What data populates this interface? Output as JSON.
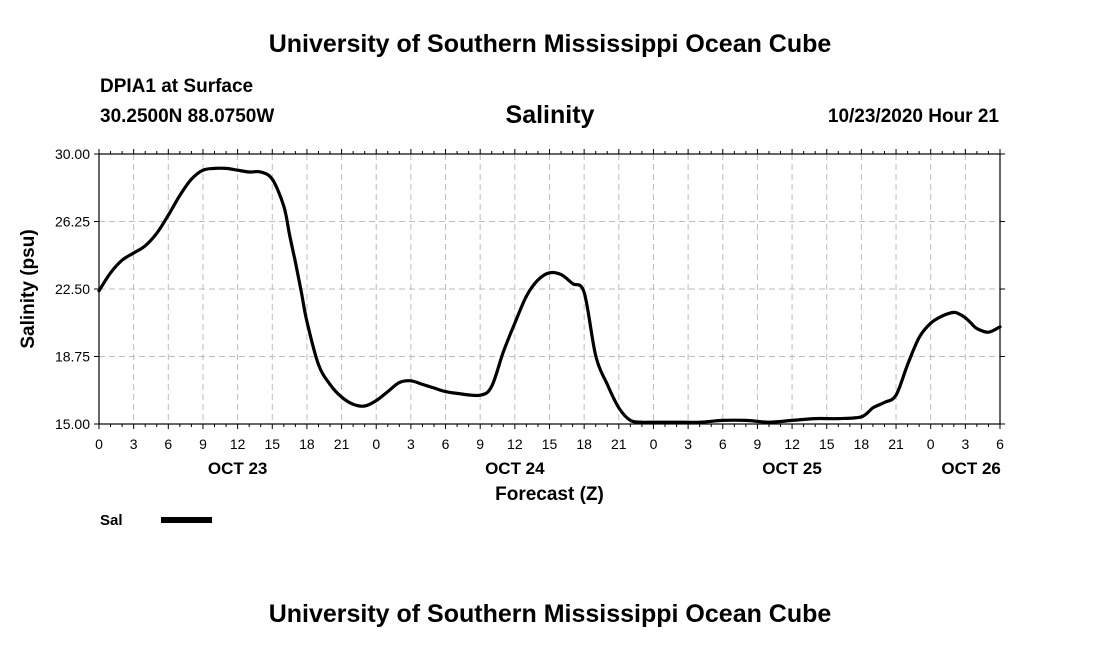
{
  "header": {
    "title_top": "University of Southern Mississippi Ocean Cube",
    "station": "DPIA1 at Surface",
    "coords": "30.2500N 88.0750W",
    "chart_title": "Salinity",
    "datetime": "10/23/2020 Hour 21",
    "title_bottom": "University of Southern Mississippi Ocean Cube"
  },
  "chart_data": {
    "type": "line",
    "title": "Salinity",
    "xlabel": "Forecast (Z)",
    "ylabel": "Salinity (psu)",
    "ylim": [
      15.0,
      30.0
    ],
    "y_ticks": [
      "15.00",
      "18.75",
      "22.50",
      "26.25",
      "30.00"
    ],
    "y_tick_values": [
      15.0,
      18.75,
      22.5,
      26.25,
      30.0
    ],
    "xlim": [
      0,
      78
    ],
    "x_tick_labels": [
      "0",
      "3",
      "6",
      "9",
      "12",
      "15",
      "18",
      "21",
      "0",
      "3",
      "6",
      "9",
      "12",
      "15",
      "18",
      "21",
      "0",
      "3",
      "6",
      "9",
      "12",
      "15",
      "18",
      "21",
      "0",
      "3",
      "6"
    ],
    "date_labels": [
      {
        "label": "OCT 23",
        "hour": 12
      },
      {
        "label": "OCT 24",
        "hour": 36
      },
      {
        "label": "OCT 25",
        "hour": 60
      },
      {
        "label": "OCT 26",
        "hour": 75.5
      }
    ],
    "grid": true,
    "legend": [
      {
        "name": "Sal",
        "color": "#000000"
      }
    ],
    "series": [
      {
        "name": "Sal",
        "color": "#000000",
        "x": [
          0,
          1,
          2,
          3,
          4,
          5,
          6,
          7,
          8,
          9,
          10,
          11,
          12,
          13,
          14,
          15,
          16,
          16.5,
          17,
          17.5,
          18,
          19,
          20,
          21,
          22,
          23,
          24,
          25,
          26,
          27,
          28,
          29,
          30,
          31,
          33,
          34,
          35,
          36,
          37,
          38,
          39,
          40,
          41,
          42,
          43,
          44,
          45,
          46,
          47,
          48,
          50,
          52,
          54,
          56,
          58,
          60,
          62,
          64,
          66,
          67,
          68,
          69,
          70,
          71,
          72,
          73,
          74,
          74.5,
          75,
          75.5,
          76,
          77,
          78
        ],
        "values": [
          22.4,
          23.4,
          24.1,
          24.5,
          24.9,
          25.6,
          26.6,
          27.7,
          28.6,
          29.1,
          29.2,
          29.2,
          29.1,
          29.0,
          29.0,
          28.6,
          27.1,
          25.5,
          24.0,
          22.4,
          20.7,
          18.3,
          17.2,
          16.5,
          16.1,
          16.0,
          16.3,
          16.8,
          17.3,
          17.4,
          17.2,
          17.0,
          16.8,
          16.7,
          16.6,
          17.1,
          19.0,
          20.6,
          22.1,
          23.0,
          23.4,
          23.3,
          22.8,
          22.3,
          18.8,
          17.2,
          15.9,
          15.2,
          15.1,
          15.1,
          15.1,
          15.1,
          15.2,
          15.2,
          15.1,
          15.2,
          15.3,
          15.3,
          15.4,
          15.9,
          16.2,
          16.6,
          18.3,
          19.8,
          20.6,
          21.0,
          21.2,
          21.1,
          20.9,
          20.6,
          20.3,
          20.1,
          20.4
        ]
      }
    ]
  }
}
